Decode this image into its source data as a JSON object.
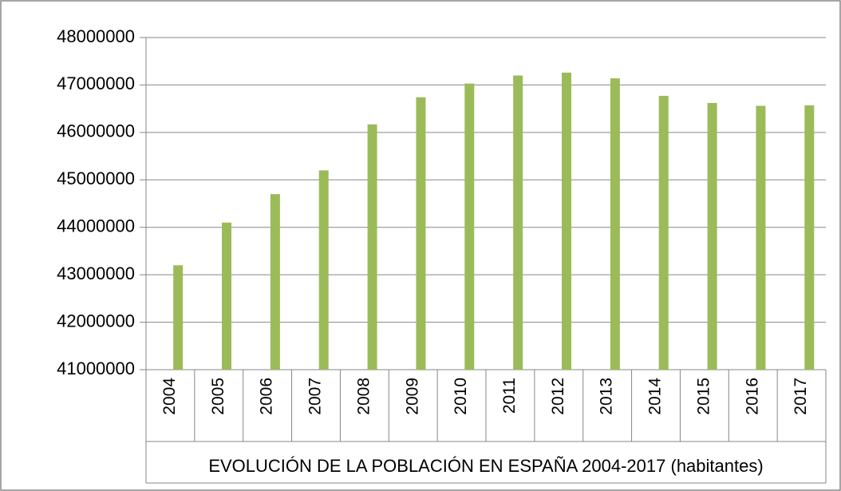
{
  "chart_data": {
    "type": "bar",
    "x_label": "EVOLUCIÓN DE LA POBLACIÓN EN ESPAÑA 2004-2017 (habitantes)",
    "categories": [
      "2004",
      "2005",
      "2006",
      "2007",
      "2008",
      "2009",
      "2010",
      "2011",
      "2012",
      "2013",
      "2014",
      "2015",
      "2016",
      "2017"
    ],
    "values": [
      43200000,
      44100000,
      44700000,
      45200000,
      46170000,
      46740000,
      47030000,
      47200000,
      47260000,
      47140000,
      46770000,
      46620000,
      46560000,
      46570000
    ],
    "color": "#9bbb59",
    "ylim": [
      41000000,
      48000000
    ],
    "yticks": [
      41000000,
      42000000,
      43000000,
      44000000,
      45000000,
      46000000,
      47000000,
      48000000
    ],
    "grid": true
  }
}
